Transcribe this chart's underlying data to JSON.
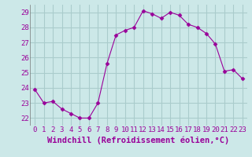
{
  "x": [
    0,
    1,
    2,
    3,
    4,
    5,
    6,
    7,
    8,
    9,
    10,
    11,
    12,
    13,
    14,
    15,
    16,
    17,
    18,
    19,
    20,
    21,
    22,
    23
  ],
  "y": [
    23.9,
    23.0,
    23.1,
    22.6,
    22.3,
    22.0,
    22.0,
    23.0,
    25.6,
    27.5,
    27.8,
    28.0,
    29.1,
    28.9,
    28.6,
    29.0,
    28.8,
    28.2,
    28.0,
    27.6,
    26.9,
    25.1,
    25.2,
    24.6
  ],
  "line_color": "#990099",
  "marker": "D",
  "marker_size": 2.5,
  "bg_color": "#cce8e8",
  "grid_color": "#aacccc",
  "xlabel": "Windchill (Refroidissement éolien,°C)",
  "xlim": [
    -0.5,
    23.5
  ],
  "ylim": [
    21.5,
    29.5
  ],
  "yticks": [
    22,
    23,
    24,
    25,
    26,
    27,
    28,
    29
  ],
  "xticks": [
    0,
    1,
    2,
    3,
    4,
    5,
    6,
    7,
    8,
    9,
    10,
    11,
    12,
    13,
    14,
    15,
    16,
    17,
    18,
    19,
    20,
    21,
    22,
    23
  ],
  "tick_fontsize": 6.5,
  "xlabel_fontsize": 7.5,
  "tick_color": "#990099",
  "label_color": "#990099"
}
